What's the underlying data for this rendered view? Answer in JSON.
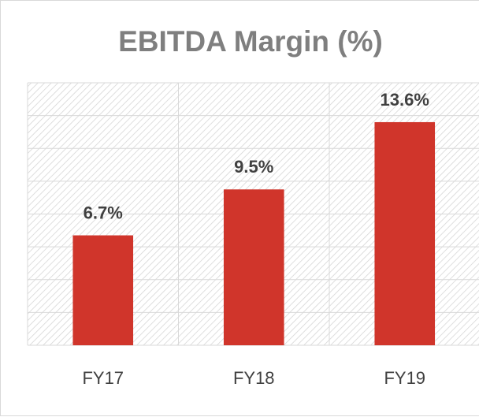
{
  "chart_data": {
    "type": "bar",
    "title": "EBITDA Margin (%)",
    "categories": [
      "FY17",
      "FY18",
      "FY19"
    ],
    "values": [
      6.7,
      9.5,
      13.6
    ],
    "value_labels": [
      "6.7%",
      "9.5%",
      "13.6%"
    ],
    "color": "#d0352b",
    "ylim": [
      0,
      16
    ],
    "yticks": [
      0,
      2,
      4,
      6,
      8,
      10,
      12,
      14,
      16
    ],
    "grid": true
  }
}
